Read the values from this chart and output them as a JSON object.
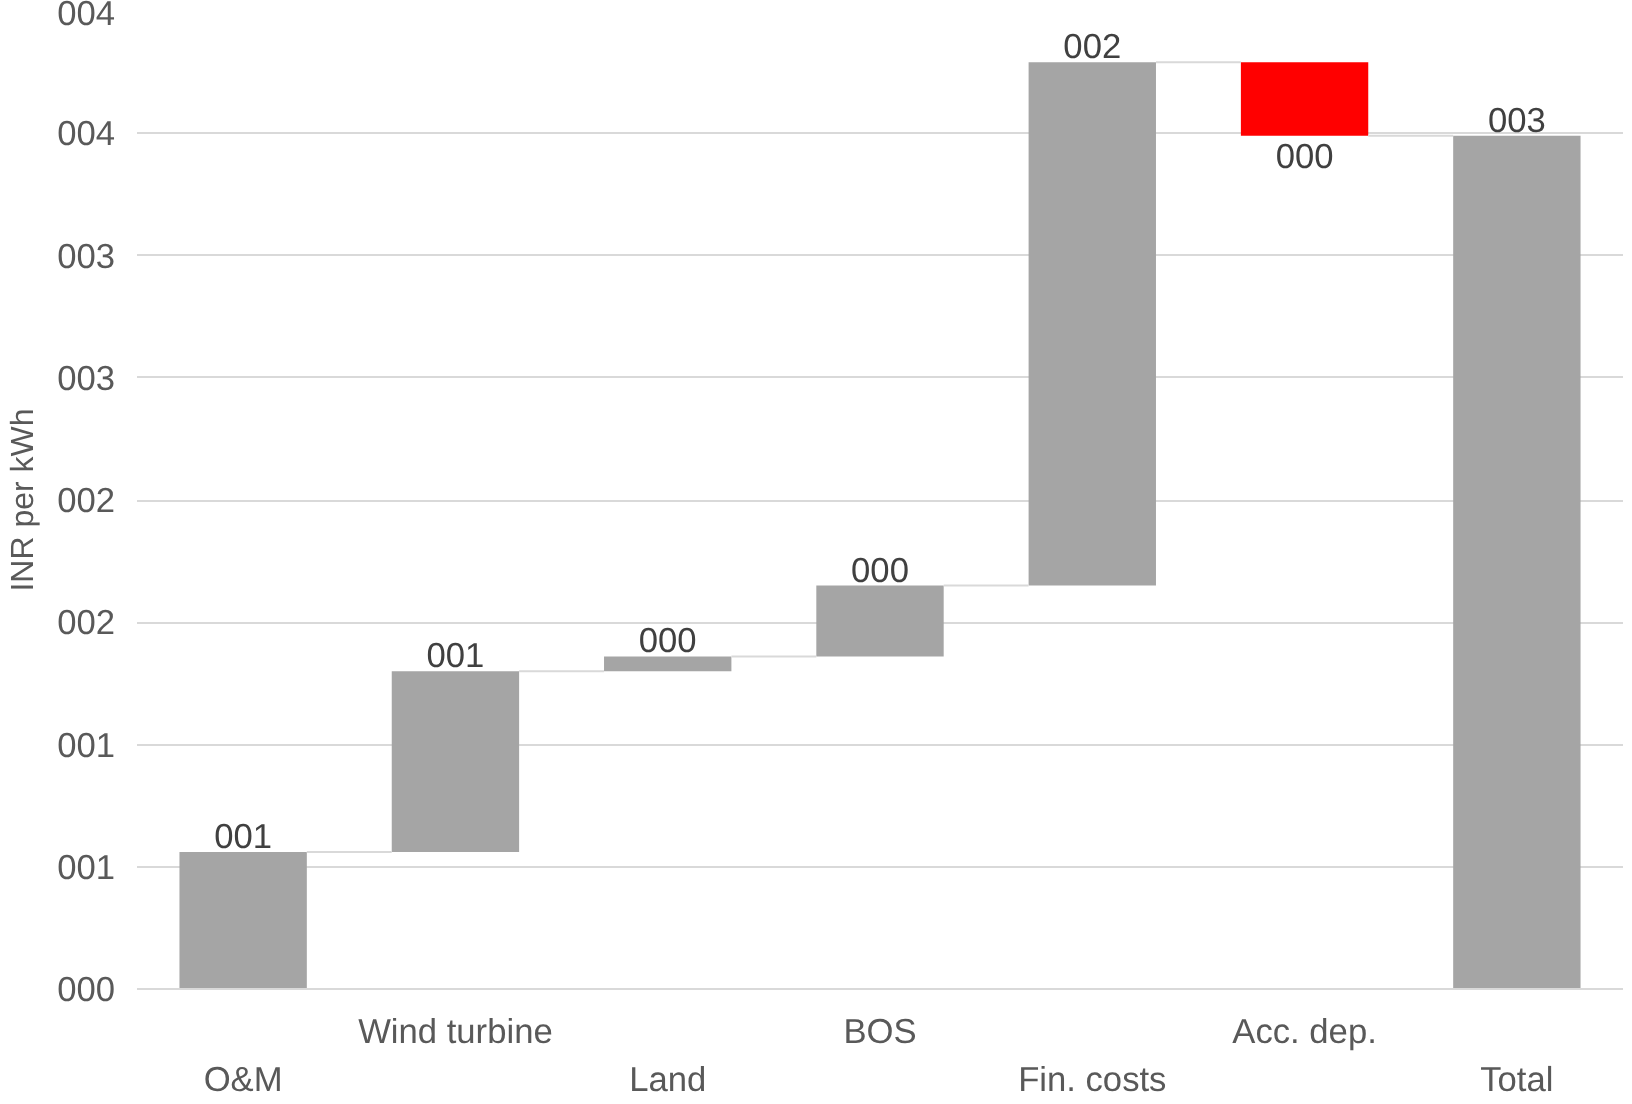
{
  "chart_data": {
    "type": "bar",
    "ylabel": "INR per kWh",
    "categories": [
      "O&M",
      "Wind turbine",
      "Land",
      "BOS",
      "Fin. costs",
      "Acc. dep.",
      "Total"
    ],
    "values": [
      0.56,
      0.74,
      0.06,
      0.29,
      2.14,
      -0.3,
      3.49
    ],
    "base": [
      0,
      0.56,
      1.3,
      1.36,
      1.65,
      3.79,
      0
    ],
    "colors": [
      "#a5a5a5",
      "#a5a5a5",
      "#a5a5a5",
      "#a5a5a5",
      "#a5a5a5",
      "#ff0000",
      "#a5a5a5"
    ],
    "value_labels": [
      "001",
      "001",
      "000",
      "000",
      "002",
      "000",
      "003"
    ],
    "ylim": [
      0,
      4
    ],
    "yticks": [
      {
        "value": 0,
        "label": "000"
      },
      {
        "value": 0.5,
        "label": "001"
      },
      {
        "value": 1,
        "label": "001"
      },
      {
        "value": 1.5,
        "label": "002"
      },
      {
        "value": 2,
        "label": "002"
      },
      {
        "value": 2.5,
        "label": "003"
      },
      {
        "value": 3,
        "label": "003"
      },
      {
        "value": 3.5,
        "label": "004"
      },
      {
        "value": 4,
        "label": "004"
      }
    ],
    "grid": "y"
  }
}
